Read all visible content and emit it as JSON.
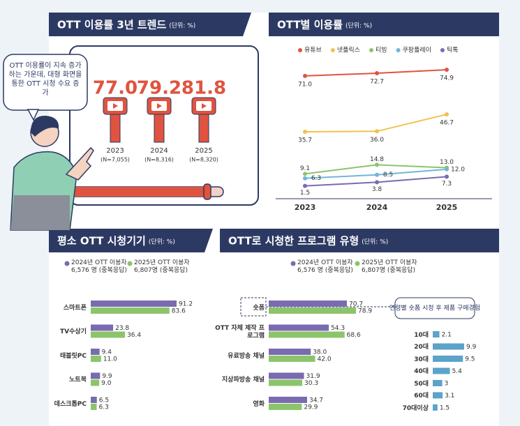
{
  "trend": {
    "title": "OTT 이용률 3년 트렌드",
    "unit": "(단위: %)",
    "bubble": "OTT 이용률이 지속 증가하는 가운데, 대형 화면을 통한 OTT 시청 수요 증가",
    "items": [
      {
        "year": "2023",
        "n": "(N=7,055)",
        "value": 77,
        "value_label": "77.0"
      },
      {
        "year": "2024",
        "n": "(N=8,316)",
        "value": 79.2,
        "value_label": "79.2"
      },
      {
        "year": "2025",
        "n": "(N=8,320)",
        "value": 81.8,
        "value_label": "81.8"
      }
    ]
  },
  "chart_data": [
    {
      "type": "line",
      "title": "OTT별 이용률",
      "unit": "(단위: %)",
      "categories": [
        "2023",
        "2024",
        "2025"
      ],
      "series": [
        {
          "name": "유튜브",
          "color": "#e0533f",
          "values": [
            71,
            72.7,
            74.9
          ],
          "value_labels": [
            "71.0",
            "72.7",
            "74.9"
          ]
        },
        {
          "name": "넷플릭스",
          "color": "#f2c14e",
          "values": [
            35.7,
            36,
            46.7
          ],
          "value_labels": [
            "35.7",
            "36.0",
            "46.7"
          ]
        },
        {
          "name": "티빙",
          "color": "#8cc46b",
          "values": [
            9.1,
            14.8,
            13
          ],
          "value_labels": [
            "9.1",
            "14.8",
            "13.0"
          ]
        },
        {
          "name": "쿠팡플레이",
          "color": "#6fb7d6",
          "values": [
            6.3,
            8.5,
            12
          ],
          "value_labels": [
            "6.3",
            "8.5",
            "12.0"
          ]
        },
        {
          "name": "틱톡",
          "color": "#7a6bb0",
          "values": [
            1.5,
            3.8,
            7.3
          ],
          "value_labels": [
            "1.5",
            "3.8",
            "7.3"
          ]
        }
      ]
    },
    {
      "type": "bar",
      "orientation": "horizontal",
      "title": "평소 OTT 시청기기",
      "unit": "(단위: %)",
      "categories": [
        "스마트폰",
        "TV수상기",
        "태블릿PC",
        "노트북",
        "데스크톱PC"
      ],
      "series": [
        {
          "name": "2024년 OTT 이용자 6,576 명 (중복응답)",
          "color": "#7a6bb0",
          "values": [
            91.2,
            23.8,
            9.4,
            9.9,
            6.5
          ],
          "value_labels": [
            "91.2",
            "23.8",
            "9.4",
            "9.9",
            "6.5"
          ]
        },
        {
          "name": "2025년 OTT 이용자 6,807명 (중복응답)",
          "color": "#8cc46b",
          "values": [
            83.6,
            36.4,
            11,
            9,
            6.3
          ],
          "value_labels": [
            "83.6",
            "36.4",
            "11.0",
            "9.0",
            "6.3"
          ]
        }
      ]
    },
    {
      "type": "bar",
      "orientation": "horizontal",
      "title": "OTT로 시청한 프로그램 유형",
      "unit": "(단위: %)",
      "categories": [
        "숏폼",
        "OTT 자체 제작 프로그램",
        "유료방송 채널",
        "지상파방송 채널",
        "영화"
      ],
      "series": [
        {
          "name": "2024년 OTT 이용자 6,576 명 (중복응답)",
          "color": "#7a6bb0",
          "values": [
            70.7,
            54.3,
            38,
            31.9,
            34.7
          ],
          "value_labels": [
            "70.7",
            "54.3",
            "38.0",
            "31.9",
            "34.7"
          ]
        },
        {
          "name": "2025년 OTT 이용자 6,807명 (중복응답)",
          "color": "#8cc46b",
          "values": [
            78.9,
            68.6,
            42,
            30.3,
            29.9
          ],
          "value_labels": [
            "78.9",
            "68.6",
            "42.0",
            "30.3",
            "29.9"
          ]
        }
      ]
    },
    {
      "type": "bar",
      "orientation": "horizontal",
      "title": "연령별 숏폼 시청 후 제품 구매경험",
      "categories": [
        "10대",
        "20대",
        "30대",
        "40대",
        "50대",
        "60대",
        "70대이상"
      ],
      "color": "#5ba3c9",
      "values": [
        2.1,
        9.9,
        9.5,
        5.4,
        3,
        3.1,
        1.5
      ]
    }
  ]
}
